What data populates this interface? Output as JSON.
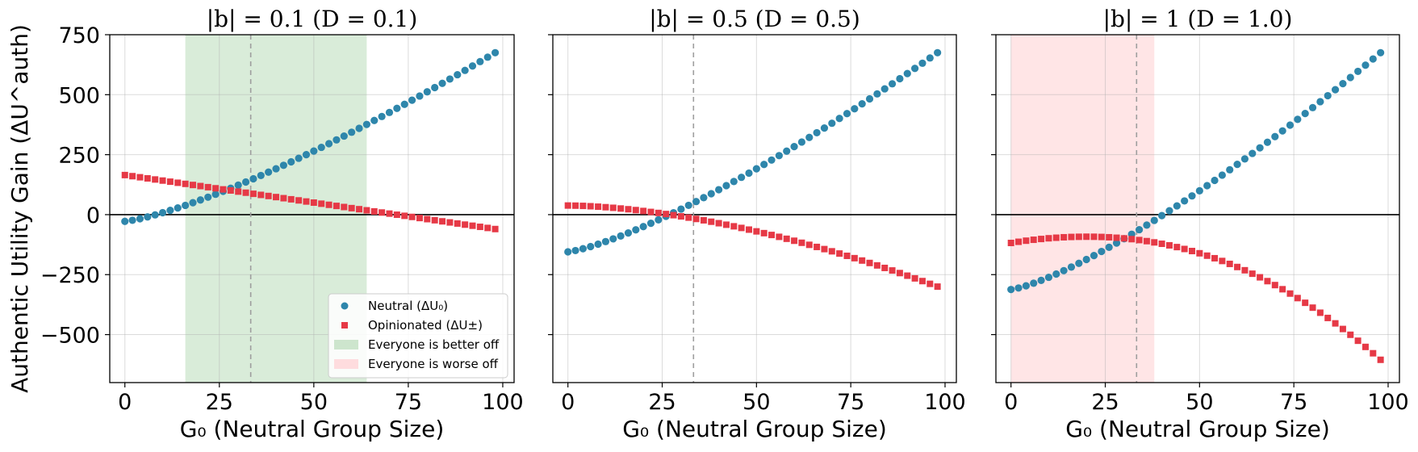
{
  "chart_data": [
    {
      "type": "scatter",
      "title": "|b| = 0.1 (D = 0.1)",
      "xlabel": "G₀ (Neutral Group Size)",
      "ylabel": "Authentic Utility Gain (ΔU^auth)",
      "xlim": [
        -4,
        103
      ],
      "ylim": [
        -700,
        750
      ],
      "xticks": [
        0,
        25,
        50,
        75,
        100
      ],
      "yticks": [
        -500,
        -250,
        0,
        250,
        500,
        750
      ],
      "vline_x": 33.3,
      "shaded_region": {
        "x": [
          16,
          64
        ],
        "label": "Everyone is better off",
        "color": "#b9dcb9"
      },
      "series": [
        {
          "name": "Neutral (ΔU₀)",
          "marker": "circle",
          "color": "#2e86ab",
          "x_start": 0,
          "x_step": 2,
          "x_end": 98,
          "y_start": -28,
          "y_end": 675,
          "curve": 1.3
        },
        {
          "name": "Opinionated (ΔU±)",
          "marker": "square",
          "color": "#e63946",
          "x_start": 0,
          "x_step": 2,
          "x_end": 98,
          "y_start": 165,
          "y_end": -60,
          "curve": 1.0
        }
      ]
    },
    {
      "type": "scatter",
      "title": "|b| = 0.5 (D = 0.5)",
      "xlabel": "G₀ (Neutral Group Size)",
      "ylabel": "",
      "xlim": [
        -4,
        103
      ],
      "ylim": [
        -700,
        750
      ],
      "xticks": [
        0,
        25,
        50,
        75,
        100
      ],
      "yticks": [
        -500,
        -250,
        0,
        250,
        500,
        750
      ],
      "vline_x": 33.3,
      "shaded_region": null,
      "series": [
        {
          "name": "Neutral (ΔU₀)",
          "marker": "circle",
          "color": "#2e86ab",
          "x_start": 0,
          "x_step": 2,
          "x_end": 98,
          "y_start": -155,
          "y_end": 675,
          "curve": 1.3
        },
        {
          "name": "Opinionated (ΔU±)",
          "marker": "square",
          "color": "#e63946",
          "x_start": 0,
          "x_step": 2,
          "x_end": 98,
          "y_start": 38,
          "y_end": -300,
          "curve": 1.7
        }
      ]
    },
    {
      "type": "scatter",
      "title": "|b| = 1 (D = 1.0)",
      "xlabel": "G₀ (Neutral Group Size)",
      "ylabel": "",
      "xlim": [
        -4,
        103
      ],
      "ylim": [
        -700,
        750
      ],
      "xticks": [
        0,
        25,
        50,
        75,
        100
      ],
      "yticks": [
        -500,
        -250,
        0,
        250,
        500,
        750
      ],
      "vline_x": 33.3,
      "shaded_region": {
        "x": [
          0,
          38
        ],
        "label": "Everyone is worse off",
        "color": "#ffcfd2"
      },
      "series": [
        {
          "name": "Neutral (ΔU₀)",
          "marker": "circle",
          "color": "#2e86ab",
          "x_start": 0,
          "x_step": 2,
          "x_end": 98,
          "y_start": -312,
          "y_end": 675,
          "curve": 1.3
        },
        {
          "name": "Opinionated (ΔU±)",
          "marker": "square",
          "color": "#e63946",
          "x_start": 0,
          "x_step": 2,
          "x_end": 98,
          "y_start": -118,
          "y_end": -605,
          "peak_x": 20,
          "peak_y": -92
        }
      ]
    }
  ],
  "legend": {
    "placement": "bottom-right of first panel",
    "items": [
      {
        "label": "Neutral (ΔU₀)",
        "marker": "circle",
        "color": "#2e86ab"
      },
      {
        "label": "Opinionated (ΔU±)",
        "marker": "square",
        "color": "#e63946"
      },
      {
        "label": "Everyone is better off",
        "marker": "patch",
        "color": "#b9dcb9"
      },
      {
        "label": "Everyone is worse off",
        "marker": "patch",
        "color": "#ffcfd2"
      }
    ]
  }
}
